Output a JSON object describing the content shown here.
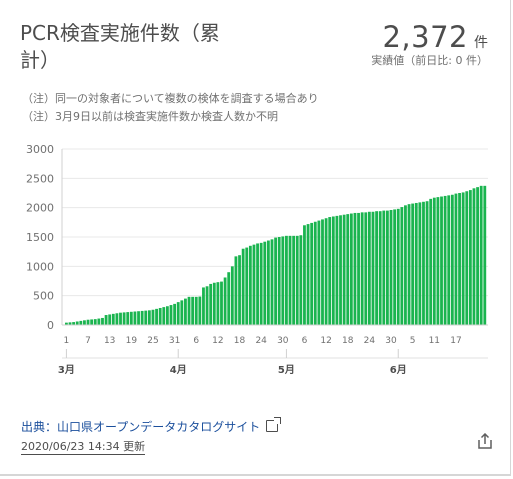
{
  "header": {
    "title": "PCR検査実施件数（累計）",
    "total_value": "2,372",
    "total_unit": "件",
    "total_sub": "実績値（前日比: 0 件）"
  },
  "notes": [
    "（注）同一の対象者について複数の検体を調査する場合あり",
    "（注）3月9日以前は検査実施件数か検査人数か不明"
  ],
  "footer": {
    "source_label": "出典：山口県オープンデータカタログサイト",
    "updated": "2020/06/23 14:34 更新"
  },
  "icons": {
    "external_link": "external-link-icon",
    "share": "share-icon"
  },
  "colors": {
    "bar": "#1ab44f",
    "grid": "#e0e0e0",
    "text": "#4d4d4d"
  },
  "chart_data": {
    "type": "bar",
    "title": "PCR検査実施件数（累計）",
    "xlabel": "",
    "ylabel": "",
    "ylim": [
      0,
      3000
    ],
    "yticks": [
      "0",
      "500",
      "1000",
      "1500",
      "2000",
      "2500",
      "3000"
    ],
    "date_tick_labels": [
      "1",
      "7",
      "13",
      "19",
      "25",
      "31",
      "6",
      "12",
      "18",
      "24",
      "30",
      "6",
      "12",
      "18",
      "24",
      "30",
      "5",
      "11",
      "17"
    ],
    "month_labels": [
      "3月",
      "4月",
      "5月",
      "6月"
    ],
    "start_date": "2020-03-01",
    "values": [
      40,
      45,
      50,
      60,
      70,
      80,
      90,
      95,
      100,
      110,
      120,
      170,
      180,
      190,
      200,
      210,
      215,
      220,
      225,
      230,
      235,
      240,
      245,
      250,
      260,
      275,
      290,
      305,
      320,
      340,
      360,
      390,
      420,
      450,
      480,
      480,
      480,
      485,
      640,
      660,
      700,
      720,
      730,
      740,
      810,
      900,
      1000,
      1170,
      1190,
      1300,
      1320,
      1350,
      1370,
      1390,
      1400,
      1420,
      1440,
      1460,
      1490,
      1500,
      1510,
      1520,
      1520,
      1520,
      1520,
      1530,
      1700,
      1720,
      1740,
      1760,
      1780,
      1800,
      1820,
      1840,
      1850,
      1860,
      1870,
      1880,
      1890,
      1900,
      1910,
      1910,
      1920,
      1920,
      1930,
      1930,
      1940,
      1940,
      1950,
      1950,
      1960,
      1970,
      1980,
      2010,
      2040,
      2060,
      2070,
      2080,
      2090,
      2100,
      2110,
      2150,
      2170,
      2180,
      2190,
      2200,
      2210,
      2220,
      2240,
      2250,
      2260,
      2280,
      2300,
      2330,
      2350,
      2372,
      2372
    ]
  }
}
